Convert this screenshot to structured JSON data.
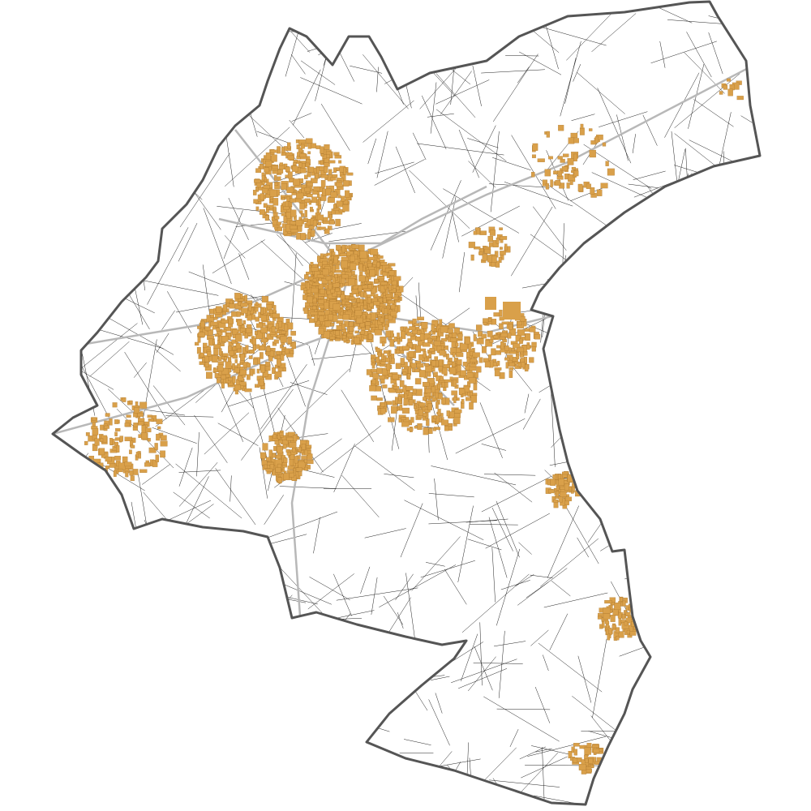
{
  "map": {
    "type": "cadastral-parcel-map",
    "colors": {
      "background": "#ffffff",
      "boundary": "#555555",
      "parcel_lines": "#222222",
      "roads": "#b8b8b8",
      "buildings": "#d9a04a",
      "building_outline": "#a8742a"
    }
  }
}
